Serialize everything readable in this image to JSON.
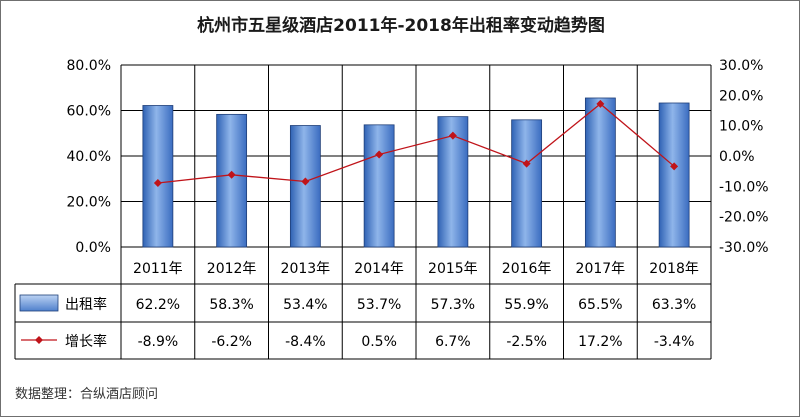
{
  "chart_data": {
    "type": "bar",
    "title": "杭州市五星级酒店2011年-2018年出租率变动趋势图",
    "categories": [
      "2011年",
      "2012年",
      "2013年",
      "2014年",
      "2015年",
      "2016年",
      "2017年",
      "2018年"
    ],
    "series": [
      {
        "name": "出租率",
        "type": "bar",
        "axis": "left",
        "values": [
          62.2,
          58.3,
          53.4,
          53.7,
          57.3,
          55.9,
          65.5,
          63.3
        ],
        "labels": [
          "62.2%",
          "58.3%",
          "53.4%",
          "53.7%",
          "57.3%",
          "55.9%",
          "65.5%",
          "63.3%"
        ],
        "color": "#5b8fd6"
      },
      {
        "name": "增长率",
        "type": "line",
        "axis": "right",
        "values": [
          -8.9,
          -6.2,
          -8.4,
          0.5,
          6.7,
          -2.5,
          17.2,
          -3.4
        ],
        "labels": [
          "-8.9%",
          "-6.2%",
          "-8.4%",
          "0.5%",
          "6.7%",
          "-2.5%",
          "17.2%",
          "-3.4%"
        ],
        "color": "#c0141a"
      }
    ],
    "y_left": {
      "min": 0,
      "max": 80,
      "ticks": [
        "0.0%",
        "20.0%",
        "40.0%",
        "60.0%",
        "80.0%"
      ]
    },
    "y_right": {
      "min": -30,
      "max": 30,
      "ticks": [
        "-30.0%",
        "-20.0%",
        "-10.0%",
        "0.0%",
        "10.0%",
        "20.0%",
        "30.0%"
      ]
    },
    "grid": true,
    "legend_placement": "data-table-left",
    "credit": "数据整理：合纵酒店顾问"
  }
}
